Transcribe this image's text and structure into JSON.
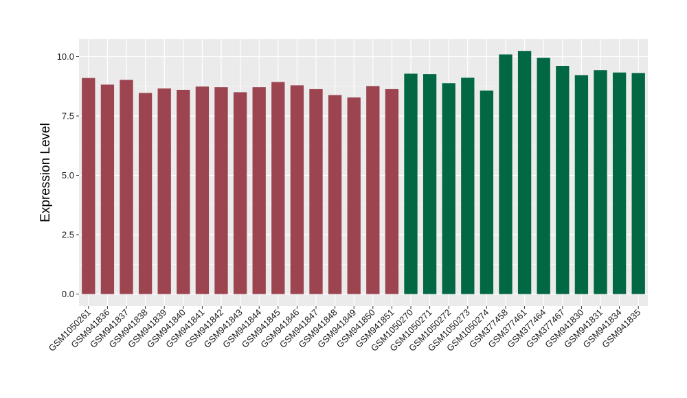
{
  "chart_data": {
    "type": "bar",
    "title": "",
    "xlabel": "",
    "ylabel": "Expression Level",
    "ylim": [
      0,
      10.3
    ],
    "yticks": [
      0.0,
      2.5,
      5.0,
      7.5,
      10.0
    ],
    "ytick_labels": [
      "0.0",
      "2.5",
      "5.0",
      "7.5",
      "10.0"
    ],
    "grid": true,
    "legend": "none",
    "panel_background": "#EBEBEB",
    "grid_color": "#FFFFFF",
    "group_colors": {
      "group1": "#9C4450",
      "group2": "#026743"
    },
    "categories": [
      "GSM1050261",
      "GSM941836",
      "GSM941837",
      "GSM941838",
      "GSM941839",
      "GSM941840",
      "GSM941841",
      "GSM941842",
      "GSM941843",
      "GSM941844",
      "GSM941845",
      "GSM941846",
      "GSM941847",
      "GSM941848",
      "GSM941849",
      "GSM941850",
      "GSM941851",
      "GSM1050270",
      "GSM1050271",
      "GSM1050272",
      "GSM1050273",
      "GSM1050274",
      "GSM377458",
      "GSM377461",
      "GSM377464",
      "GSM377467",
      "GSM941830",
      "GSM941831",
      "GSM941834",
      "GSM941835"
    ],
    "values": [
      9.1,
      8.82,
      9.02,
      8.47,
      8.66,
      8.6,
      8.74,
      8.71,
      8.5,
      8.71,
      8.93,
      8.79,
      8.63,
      8.38,
      8.28,
      8.76,
      8.63,
      9.28,
      9.26,
      8.88,
      9.11,
      8.57,
      10.09,
      10.24,
      9.95,
      9.61,
      9.22,
      9.43,
      9.33,
      9.31
    ],
    "groups": [
      "group1",
      "group1",
      "group1",
      "group1",
      "group1",
      "group1",
      "group1",
      "group1",
      "group1",
      "group1",
      "group1",
      "group1",
      "group1",
      "group1",
      "group1",
      "group1",
      "group1",
      "group2",
      "group2",
      "group2",
      "group2",
      "group2",
      "group2",
      "group2",
      "group2",
      "group2",
      "group2",
      "group2",
      "group2",
      "group2"
    ]
  }
}
